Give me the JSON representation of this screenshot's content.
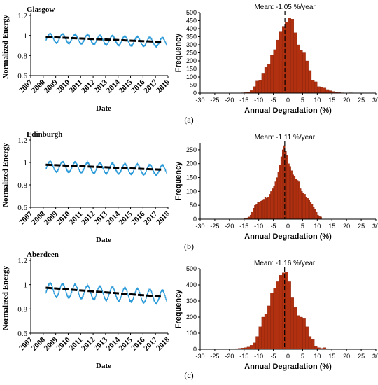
{
  "colors": {
    "ts_line": "#2a9ad8",
    "trend": "#000000",
    "bar_fill": "#b03010",
    "bar_edge": "#7a1a05",
    "axis": "#000000"
  },
  "panel_labels": [
    "(a)",
    "(b)",
    "(c)"
  ],
  "chart_data": [
    {
      "type": "line",
      "panel": "(a)",
      "title": "Glasgow",
      "xlabel": "Date",
      "ylabel": "Normalized Energy",
      "xlim": [
        2007,
        2018
      ],
      "ylim": [
        0.6,
        1.2
      ],
      "x_ticks": [
        "2007",
        "2008",
        "2009",
        "2010",
        "2011",
        "2012",
        "2013",
        "2014",
        "2015",
        "2016",
        "2017",
        "2018"
      ],
      "y_ticks": [
        "0.6",
        "0.8",
        "1",
        "1.2"
      ],
      "trend": {
        "x": [
          2008.2,
          2017.6
        ],
        "y": [
          0.985,
          0.935
        ]
      },
      "series": [
        {
          "x_start": 2008.2,
          "x_end": 2017.9,
          "center_start": 0.975,
          "center_end": 0.93,
          "seasonal_amp": 0.045
        }
      ]
    },
    {
      "type": "bar",
      "panel": "(a)",
      "title": "Mean: -1.05 %/year",
      "xlabel": "Annual Degradation (%)",
      "ylabel": "Frequency",
      "xlim": [
        -30,
        30
      ],
      "ylim": [
        0,
        500
      ],
      "mean": -1.05,
      "x_ticks": [
        "-30",
        "-25",
        "-20",
        "-15",
        "-10",
        "-5",
        "0",
        "5",
        "10",
        "15",
        "20",
        "25",
        "30"
      ],
      "y_ticks": [
        "0",
        "50",
        "100",
        "150",
        "200",
        "250",
        "300",
        "350",
        "400",
        "450",
        "500"
      ],
      "bin_start": -16,
      "bin_width": 1,
      "values": [
        2,
        3,
        6,
        16,
        40,
        75,
        80,
        120,
        160,
        180,
        235,
        270,
        330,
        380,
        415,
        440,
        465,
        460,
        375,
        300,
        265,
        250,
        200,
        140,
        80,
        70,
        40,
        35,
        32,
        22,
        15,
        10,
        4,
        3,
        2,
        1,
        1,
        2
      ]
    },
    {
      "type": "line",
      "panel": "(b)",
      "title": "Edinburgh",
      "xlabel": "Date",
      "ylabel": "Normalized Energy",
      "xlim": [
        2007,
        2018
      ],
      "ylim": [
        0.6,
        1.2
      ],
      "x_ticks": [
        "2007",
        "2008",
        "2009",
        "2010",
        "2011",
        "2012",
        "2013",
        "2014",
        "2015",
        "2016",
        "2017",
        "2018"
      ],
      "y_ticks": [
        "0.6",
        "0.8",
        "1",
        "1.2"
      ],
      "trend": {
        "x": [
          2008.2,
          2017.6
        ],
        "y": [
          0.98,
          0.935
        ]
      },
      "series": [
        {
          "x_start": 2008.2,
          "x_end": 2017.9,
          "center_start": 0.965,
          "center_end": 0.93,
          "seasonal_amp": 0.045
        }
      ]
    },
    {
      "type": "bar",
      "panel": "(b)",
      "title": "Mean: -1.11 %/year",
      "xlabel": "Annual Degradation (%)",
      "ylabel": "Frequency",
      "xlim": [
        -30,
        30
      ],
      "ylim": [
        0,
        275
      ],
      "mean": -1.11,
      "x_ticks": [
        "-30",
        "-25",
        "-20",
        "-15",
        "-10",
        "-5",
        "0",
        "5",
        "10",
        "15",
        "20",
        "25",
        "30"
      ],
      "y_ticks": [
        "0",
        "50",
        "100",
        "150",
        "200",
        "250"
      ],
      "bin_start": -15,
      "bin_width": 0.5,
      "values": [
        2,
        3,
        5,
        8,
        15,
        25,
        40,
        50,
        55,
        60,
        62,
        65,
        70,
        72,
        78,
        75,
        80,
        90,
        100,
        110,
        120,
        135,
        150,
        170,
        195,
        225,
        250,
        265,
        245,
        230,
        200,
        190,
        175,
        160,
        155,
        145,
        140,
        135,
        110,
        100,
        95,
        90,
        80,
        75,
        70,
        60,
        55,
        45,
        35,
        25,
        15,
        10,
        8
      ]
    },
    {
      "type": "line",
      "panel": "(c)",
      "title": "Aberdeen",
      "xlabel": "Date",
      "ylabel": "Normalized Energy",
      "xlim": [
        2007,
        2018
      ],
      "ylim": [
        0.6,
        1.2
      ],
      "x_ticks": [
        "2007",
        "2008",
        "2009",
        "2010",
        "2011",
        "2012",
        "2013",
        "2014",
        "2015",
        "2016",
        "2017",
        "2018"
      ],
      "y_ticks": [
        "0.6",
        "0.8",
        "1",
        "1.2"
      ],
      "trend": {
        "x": [
          2008.2,
          2017.6
        ],
        "y": [
          0.975,
          0.9
        ]
      },
      "series": [
        {
          "x_start": 2008.2,
          "x_end": 2017.9,
          "center_start": 0.96,
          "center_end": 0.895,
          "seasonal_amp": 0.055
        }
      ]
    },
    {
      "type": "bar",
      "panel": "(c)",
      "title": "Mean: -1.16 %/year",
      "xlabel": "Annual Degradation (%)",
      "ylabel": "Frequency",
      "xlim": [
        -30,
        30
      ],
      "ylim": [
        0,
        500
      ],
      "mean": -1.16,
      "x_ticks": [
        "-30",
        "-25",
        "-20",
        "-15",
        "-10",
        "-5",
        "0",
        "5",
        "10",
        "15",
        "20",
        "25",
        "30"
      ],
      "y_ticks": [
        "0",
        "100",
        "200",
        "300",
        "400",
        "500"
      ],
      "bin_start": -20,
      "bin_width": 1,
      "values": [
        2,
        3,
        4,
        6,
        8,
        10,
        14,
        25,
        40,
        80,
        140,
        200,
        220,
        270,
        350,
        380,
        420,
        460,
        475,
        480,
        420,
        320,
        260,
        210,
        200,
        190,
        140,
        80,
        60,
        20,
        10,
        6,
        10,
        4,
        2
      ]
    }
  ]
}
